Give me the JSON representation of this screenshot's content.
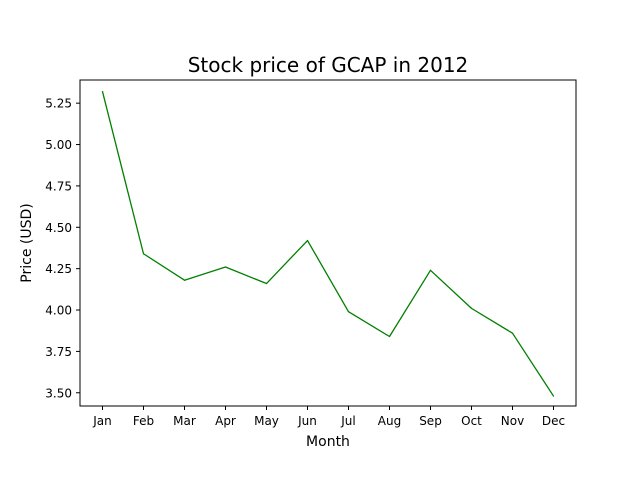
{
  "chart_data": {
    "type": "line",
    "title": "Stock price of GCAP in 2012",
    "xlabel": "Month",
    "ylabel": "Price (USD)",
    "categories": [
      "Jan",
      "Feb",
      "Mar",
      "Apr",
      "May",
      "Jun",
      "Jul",
      "Aug",
      "Sep",
      "Oct",
      "Nov",
      "Dec"
    ],
    "series": [
      {
        "values": [
          5.32,
          4.34,
          4.18,
          4.26,
          4.16,
          4.42,
          3.99,
          3.84,
          4.24,
          4.01,
          3.86,
          3.48
        ],
        "color": "#008000"
      }
    ],
    "yticks": [
      3.5,
      3.75,
      4.0,
      4.25,
      4.5,
      4.75,
      5.0,
      5.25
    ],
    "ytick_labels": [
      "3.50",
      "3.75",
      "4.00",
      "4.25",
      "4.50",
      "4.75",
      "5.00",
      "5.25"
    ],
    "ylim": [
      3.42,
      5.39
    ],
    "grid": false,
    "legend": false
  }
}
